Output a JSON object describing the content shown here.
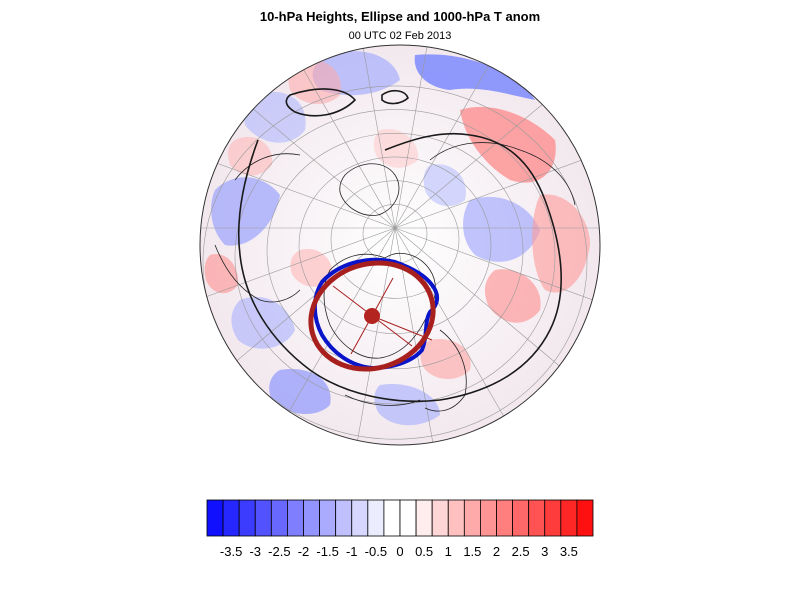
{
  "title": "10-hPa Heights, Ellipse and 1000-hPa T anom",
  "subtitle": "00 UTC 02 Feb 2013",
  "colorbar": {
    "colors": [
      "#1010ff",
      "#2626ff",
      "#3c3cff",
      "#5252ff",
      "#6868ff",
      "#7e7eff",
      "#9494ff",
      "#aaaaff",
      "#c0c0ff",
      "#d6d6ff",
      "#ececff",
      "#ffffff",
      "#ffffff",
      "#ffecec",
      "#ffd6d6",
      "#ffc0c0",
      "#ffaaaa",
      "#ff9494",
      "#ff7e7e",
      "#ff6868",
      "#ff5252",
      "#ff3c3c",
      "#ff2626",
      "#ff1010"
    ],
    "tick_labels": [
      "-3.5",
      "-3",
      "-2.5",
      "-2",
      "-1.5",
      "-1",
      "-0.5",
      "0",
      "0.5",
      "1",
      "1.5",
      "2",
      "2.5",
      "3",
      "3.5"
    ]
  },
  "map_colors": {
    "contour_10hpa": "#1a1a1a",
    "vortex_edge": "#0a14c8",
    "ellipse": "#a8201e",
    "ellipse_center": "#b32420",
    "coastline": "#222222",
    "graticule": "#9a9a9a"
  }
}
